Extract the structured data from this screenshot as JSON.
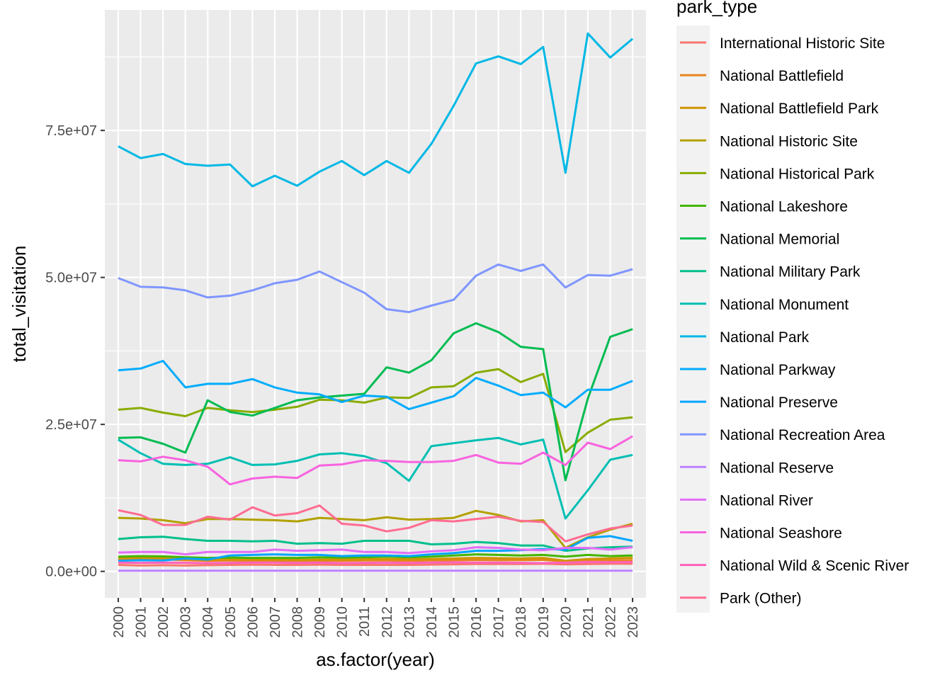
{
  "chart_data": {
    "type": "line",
    "xlabel": "as.factor(year)",
    "ylabel": "total_visitation",
    "legend_title": "park_type",
    "legend_position": "right",
    "grid": true,
    "ylim": [
      -4500000,
      95500000
    ],
    "y_ticks": [
      0,
      25000000,
      50000000,
      75000000
    ],
    "y_tick_labels": [
      "0.0e+00",
      "2.5e+07",
      "5.0e+07",
      "7.5e+07"
    ],
    "x": [
      "2000",
      "2001",
      "2002",
      "2003",
      "2004",
      "2005",
      "2006",
      "2007",
      "2008",
      "2009",
      "2010",
      "2011",
      "2012",
      "2013",
      "2014",
      "2015",
      "2016",
      "2017",
      "2018",
      "2019",
      "2020",
      "2021",
      "2022",
      "2023"
    ],
    "series": [
      {
        "name": "International Historic Site",
        "color": "#F8766D",
        "values": [
          1100000,
          1000000,
          1050000,
          1000000,
          1050000,
          1100000,
          1150000,
          1100000,
          1100000,
          1150000,
          1100000,
          1100000,
          1100000,
          1100000,
          1150000,
          1200000,
          1250000,
          1250000,
          1250000,
          1300000,
          1200000,
          1250000,
          1300000,
          1300000
        ]
      },
      {
        "name": "National Battlefield",
        "color": "#E7851E",
        "values": [
          2000000,
          2100000,
          2050000,
          1900000,
          1800000,
          1850000,
          1800000,
          1800000,
          1750000,
          1800000,
          1800000,
          1850000,
          1850000,
          1800000,
          1850000,
          1900000,
          1950000,
          1900000,
          1900000,
          1950000,
          1700000,
          1800000,
          1850000,
          1900000
        ]
      },
      {
        "name": "National Battlefield Park",
        "color": "#D09400",
        "values": [
          2200000,
          2300000,
          2250000,
          2100000,
          2000000,
          2050000,
          2000000,
          2000000,
          1950000,
          2000000,
          2000000,
          2050000,
          2100000,
          2050000,
          2100000,
          2200000,
          2300000,
          2250000,
          2200000,
          2300000,
          1800000,
          2100000,
          2200000,
          2300000
        ]
      },
      {
        "name": "National Historic Site",
        "color": "#B2A100",
        "values": [
          9100000,
          9000000,
          8700000,
          8200000,
          8900000,
          8900000,
          8800000,
          8700000,
          8500000,
          9100000,
          8900000,
          8700000,
          9200000,
          8800000,
          8900000,
          9100000,
          10300000,
          9600000,
          8500000,
          8700000,
          4000000,
          5800000,
          7100000,
          8100000
        ]
      },
      {
        "name": "National Historical Park",
        "color": "#89AC00",
        "values": [
          27500000,
          27800000,
          27000000,
          26400000,
          27800000,
          27400000,
          27100000,
          27500000,
          28000000,
          29200000,
          29100000,
          28700000,
          29600000,
          29500000,
          31300000,
          31500000,
          33800000,
          34400000,
          32200000,
          33600000,
          20300000,
          23600000,
          25800000,
          26200000
        ]
      },
      {
        "name": "National Lakeshore",
        "color": "#45B500",
        "values": [
          2500000,
          2600000,
          2550000,
          2400000,
          2300000,
          2350000,
          2300000,
          2300000,
          2300000,
          2400000,
          2350000,
          2400000,
          2500000,
          2400000,
          2500000,
          2700000,
          2900000,
          2800000,
          2700000,
          2800000,
          2500000,
          2800000,
          2600000,
          2700000
        ]
      },
      {
        "name": "National Memorial",
        "color": "#00BC51",
        "values": [
          22700000,
          22800000,
          21700000,
          20200000,
          29100000,
          27100000,
          26500000,
          27800000,
          29100000,
          29600000,
          29900000,
          30200000,
          34700000,
          33800000,
          35900000,
          40500000,
          42200000,
          40700000,
          38200000,
          37800000,
          15500000,
          29400000,
          39900000,
          41200000
        ]
      },
      {
        "name": "National Military Park",
        "color": "#00C08B",
        "values": [
          5500000,
          5800000,
          5900000,
          5500000,
          5200000,
          5200000,
          5100000,
          5200000,
          4700000,
          4800000,
          4700000,
          5200000,
          5200000,
          5200000,
          4600000,
          4700000,
          5000000,
          4800000,
          4400000,
          4400000,
          3500000,
          3900000,
          4100000,
          4200000
        ]
      },
      {
        "name": "National Monument",
        "color": "#00BFB3",
        "values": [
          22400000,
          20100000,
          18300000,
          18100000,
          18300000,
          19400000,
          18100000,
          18200000,
          18800000,
          19900000,
          20100000,
          19600000,
          18400000,
          15400000,
          21300000,
          21800000,
          22300000,
          22700000,
          21600000,
          22400000,
          9000000,
          13800000,
          19000000,
          19800000
        ]
      },
      {
        "name": "National Park",
        "color": "#00B8E5",
        "values": [
          72300000,
          70300000,
          71000000,
          69300000,
          69000000,
          69200000,
          65500000,
          67300000,
          65600000,
          68000000,
          69800000,
          67400000,
          69800000,
          67800000,
          72700000,
          79200000,
          86400000,
          87600000,
          86300000,
          89200000,
          67800000,
          91500000,
          87400000,
          90600000
        ]
      },
      {
        "name": "National Parkway",
        "color": "#00ACFC",
        "values": [
          34200000,
          34500000,
          35800000,
          31300000,
          31900000,
          31900000,
          32700000,
          31300000,
          30400000,
          30100000,
          28800000,
          29900000,
          29700000,
          27600000,
          28700000,
          29800000,
          32900000,
          31600000,
          30000000,
          30400000,
          27900000,
          30900000,
          30900000,
          32400000
        ]
      },
      {
        "name": "National Preserve",
        "color": "#00A6FF",
        "values": [
          1800000,
          1900000,
          1850000,
          2200000,
          2000000,
          2700000,
          2800000,
          2900000,
          2800000,
          2800000,
          2600000,
          2700000,
          2700000,
          2600000,
          2900000,
          3100000,
          3500000,
          3500000,
          3600000,
          3800000,
          3700000,
          5700000,
          6000000,
          5200000
        ]
      },
      {
        "name": "National Recreation Area",
        "color": "#7F96FF",
        "values": [
          49900000,
          48400000,
          48300000,
          47800000,
          46600000,
          46900000,
          47800000,
          49000000,
          49600000,
          51000000,
          49200000,
          47400000,
          44600000,
          44100000,
          45200000,
          46200000,
          50300000,
          52200000,
          51100000,
          52200000,
          48300000,
          50400000,
          50300000,
          51400000
        ]
      },
      {
        "name": "National Reserve",
        "color": "#BD81FF",
        "values": [
          100000,
          100000,
          100000,
          100000,
          100000,
          100000,
          100000,
          100000,
          100000,
          100000,
          100000,
          100000,
          100000,
          100000,
          100000,
          100000,
          100000,
          100000,
          100000,
          100000,
          100000,
          100000,
          100000,
          100000
        ]
      },
      {
        "name": "National River",
        "color": "#E26EF7",
        "values": [
          3200000,
          3300000,
          3300000,
          2900000,
          3300000,
          3300000,
          3300000,
          3700000,
          3500000,
          3600000,
          3700000,
          3300000,
          3300000,
          3100000,
          3400000,
          3600000,
          4100000,
          4000000,
          3700000,
          3600000,
          4000000,
          4000000,
          3700000,
          4100000
        ]
      },
      {
        "name": "National Seashore",
        "color": "#F863DF",
        "values": [
          18900000,
          18700000,
          19500000,
          18900000,
          17800000,
          14800000,
          15800000,
          16100000,
          15900000,
          18000000,
          18200000,
          18900000,
          18800000,
          18600000,
          18600000,
          18800000,
          19800000,
          18500000,
          18300000,
          20200000,
          18100000,
          21900000,
          20800000,
          23000000
        ]
      },
      {
        "name": "National Wild & Scenic River",
        "color": "#FF62BC",
        "values": [
          1500000,
          1450000,
          1500000,
          1450000,
          1400000,
          1450000,
          1500000,
          1500000,
          1450000,
          1500000,
          1400000,
          1450000,
          1500000,
          1450000,
          1500000,
          1550000,
          1500000,
          1500000,
          1450000,
          1400000,
          1500000,
          1600000,
          1550000,
          1600000
        ]
      },
      {
        "name": "Park (Other)",
        "color": "#FF6C91",
        "values": [
          10400000,
          9600000,
          7900000,
          7900000,
          9300000,
          8800000,
          10900000,
          9500000,
          9900000,
          11200000,
          8100000,
          7800000,
          6800000,
          7400000,
          8700000,
          8500000,
          8900000,
          9300000,
          8600000,
          8400000,
          5100000,
          6300000,
          7300000,
          7800000
        ]
      }
    ]
  }
}
